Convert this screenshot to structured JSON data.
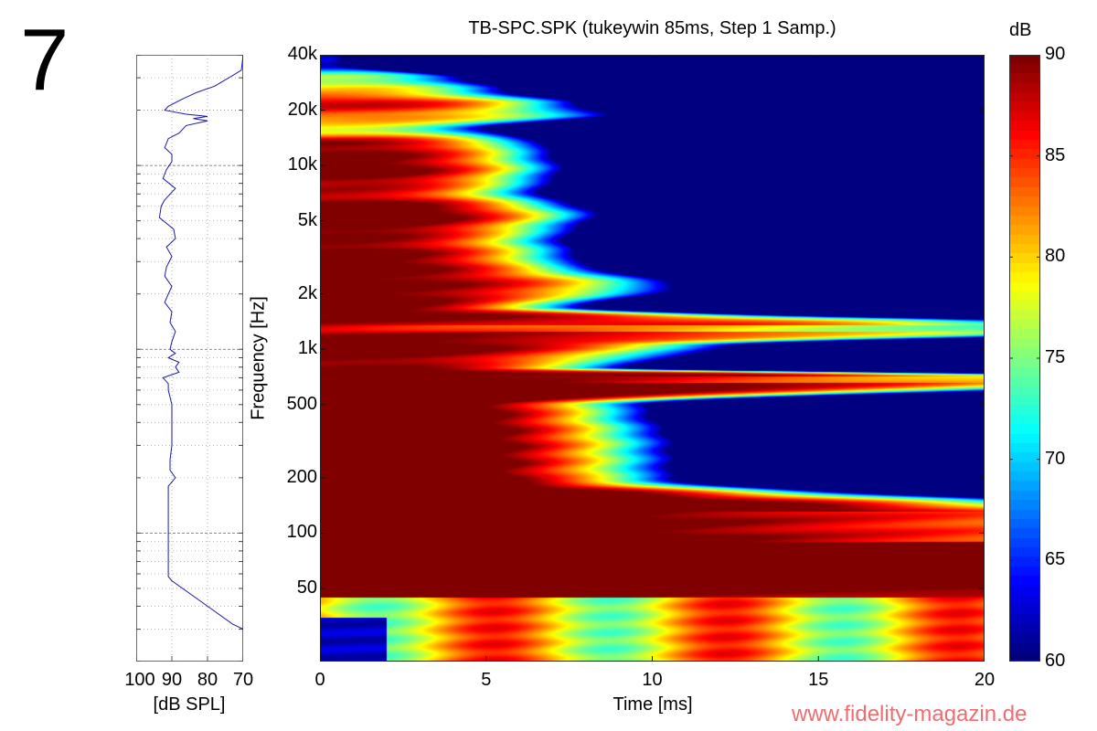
{
  "figure_number": "7",
  "watermark": "www.fidelity-magazin.de",
  "colors": {
    "spl_curve": "#1a1aa8",
    "watermark": "#ee6d72",
    "colormap": "jet"
  },
  "chart_data": [
    {
      "type": "heatmap",
      "title": "TB-SPC.SPK (tukeywin 85ms, Step 1 Samp.)",
      "xlabel": "Time [ms]",
      "ylabel": "Frequency [Hz]",
      "xlim": [
        0,
        20
      ],
      "ylim": [
        20,
        40000
      ],
      "yscale": "log",
      "x_ticks": [
        {
          "value": 0,
          "label": "0"
        },
        {
          "value": 5,
          "label": "5"
        },
        {
          "value": 10,
          "label": "10"
        },
        {
          "value": 15,
          "label": "15"
        },
        {
          "value": 20,
          "label": "20"
        }
      ],
      "y_ticks": [
        {
          "value": 40000,
          "label": "40k"
        },
        {
          "value": 20000,
          "label": "20k"
        },
        {
          "value": 10000,
          "label": "10k"
        },
        {
          "value": 5000,
          "label": "5k"
        },
        {
          "value": 2000,
          "label": "2k"
        },
        {
          "value": 1000,
          "label": "1k"
        },
        {
          "value": 500,
          "label": "500"
        },
        {
          "value": 200,
          "label": "200"
        },
        {
          "value": 100,
          "label": "100"
        },
        {
          "value": 50,
          "label": "50"
        }
      ],
      "colorbar": {
        "unit": "dB",
        "range": [
          60,
          90
        ],
        "ticks": [
          {
            "value": 90,
            "label": "90"
          },
          {
            "value": 85,
            "label": "85"
          },
          {
            "value": 80,
            "label": "80"
          },
          {
            "value": 75,
            "label": "75"
          },
          {
            "value": 70,
            "label": "70"
          },
          {
            "value": 65,
            "label": "65"
          },
          {
            "value": 60,
            "label": "60"
          }
        ]
      },
      "bands": [
        {
          "f_hz": 36000,
          "level_db": 62,
          "decay_ms": 1.0
        },
        {
          "f_hz": 30000,
          "level_db": 76,
          "decay_ms": 3.8
        },
        {
          "f_hz": 26000,
          "level_db": 80,
          "decay_ms": 4.4
        },
        {
          "f_hz": 22000,
          "level_db": 88,
          "decay_ms": 5.5
        },
        {
          "f_hz": 19000,
          "level_db": 84,
          "decay_ms": 6.5
        },
        {
          "f_hz": 16000,
          "level_db": 78,
          "decay_ms": 4.2
        },
        {
          "f_hz": 13000,
          "level_db": 90,
          "decay_ms": 4.8
        },
        {
          "f_hz": 9500,
          "level_db": 92,
          "decay_ms": 5.0
        },
        {
          "f_hz": 7200,
          "level_db": 88,
          "decay_ms": 4.8
        },
        {
          "f_hz": 5500,
          "level_db": 94,
          "decay_ms": 5.6
        },
        {
          "f_hz": 4000,
          "level_db": 90,
          "decay_ms": 5.2
        },
        {
          "f_hz": 3000,
          "level_db": 92,
          "decay_ms": 5.4
        },
        {
          "f_hz": 2200,
          "level_db": 91,
          "decay_ms": 7.5
        },
        {
          "f_hz": 1700,
          "level_db": 92,
          "decay_ms": 5.5
        },
        {
          "f_hz": 1300,
          "level_db": 88,
          "decay_ms": 20
        },
        {
          "f_hz": 1050,
          "level_db": 92,
          "decay_ms": 8.5
        },
        {
          "f_hz": 800,
          "level_db": 90,
          "decay_ms": 6.5
        },
        {
          "f_hz": 700,
          "level_db": 94,
          "decay_ms": 20
        },
        {
          "f_hz": 500,
          "level_db": 96,
          "decay_ms": 6.5
        },
        {
          "f_hz": 300,
          "level_db": 96,
          "decay_ms": 7.0
        },
        {
          "f_hz": 200,
          "level_db": 96,
          "decay_ms": 7.0
        },
        {
          "f_hz": 120,
          "level_db": 98,
          "decay_ms": 20
        },
        {
          "f_hz": 55,
          "level_db": 100,
          "decay_ms": 20
        },
        {
          "f_hz": 30,
          "level_db": 78,
          "decay_ms": 20
        }
      ]
    },
    {
      "type": "line",
      "xlabel": "[dB SPL]",
      "xlim": [
        100,
        70
      ],
      "x_reversed": true,
      "ylim": [
        20,
        40000
      ],
      "yscale": "log",
      "x_ticks": [
        {
          "value": 100,
          "label": "100"
        },
        {
          "value": 90,
          "label": "90"
        },
        {
          "value": 80,
          "label": "80"
        },
        {
          "value": 70,
          "label": "70"
        }
      ],
      "series": [
        {
          "name": "SPL",
          "points": [
            [
              40000,
              70
            ],
            [
              33000,
              70.5
            ],
            [
              30000,
              74
            ],
            [
              27000,
              78
            ],
            [
              25000,
              83
            ],
            [
              23000,
              87
            ],
            [
              21000,
              91
            ],
            [
              20000,
              92
            ],
            [
              19000,
              86
            ],
            [
              18500,
              80
            ],
            [
              18000,
              84
            ],
            [
              17500,
              80
            ],
            [
              16500,
              86
            ],
            [
              15000,
              88
            ],
            [
              14000,
              91
            ],
            [
              12500,
              92
            ],
            [
              11500,
              90
            ],
            [
              10500,
              90
            ],
            [
              9500,
              91.5
            ],
            [
              8500,
              92.5
            ],
            [
              7500,
              89
            ],
            [
              6500,
              92
            ],
            [
              6000,
              93
            ],
            [
              5200,
              93.5
            ],
            [
              4500,
              89.5
            ],
            [
              4000,
              89
            ],
            [
              3600,
              91.5
            ],
            [
              3200,
              90
            ],
            [
              2800,
              91.5
            ],
            [
              2500,
              92
            ],
            [
              2200,
              90
            ],
            [
              2000,
              91
            ],
            [
              1800,
              92
            ],
            [
              1600,
              90
            ],
            [
              1400,
              90.5
            ],
            [
              1250,
              89
            ],
            [
              1100,
              90
            ],
            [
              1000,
              90.5
            ],
            [
              950,
              89
            ],
            [
              900,
              91
            ],
            [
              850,
              88
            ],
            [
              800,
              89
            ],
            [
              750,
              88
            ],
            [
              700,
              92.5
            ],
            [
              650,
              91
            ],
            [
              600,
              91
            ],
            [
              500,
              90
            ],
            [
              400,
              90
            ],
            [
              350,
              90
            ],
            [
              300,
              90
            ],
            [
              250,
              90.5
            ],
            [
              220,
              90.5
            ],
            [
              200,
              89
            ],
            [
              180,
              91
            ],
            [
              150,
              91
            ],
            [
              120,
              91
            ],
            [
              100,
              91
            ],
            [
              80,
              91
            ],
            [
              65,
              91
            ],
            [
              58,
              91
            ],
            [
              55,
              90
            ],
            [
              40,
              80
            ],
            [
              32,
              73
            ],
            [
              30,
              70
            ]
          ]
        }
      ]
    }
  ]
}
